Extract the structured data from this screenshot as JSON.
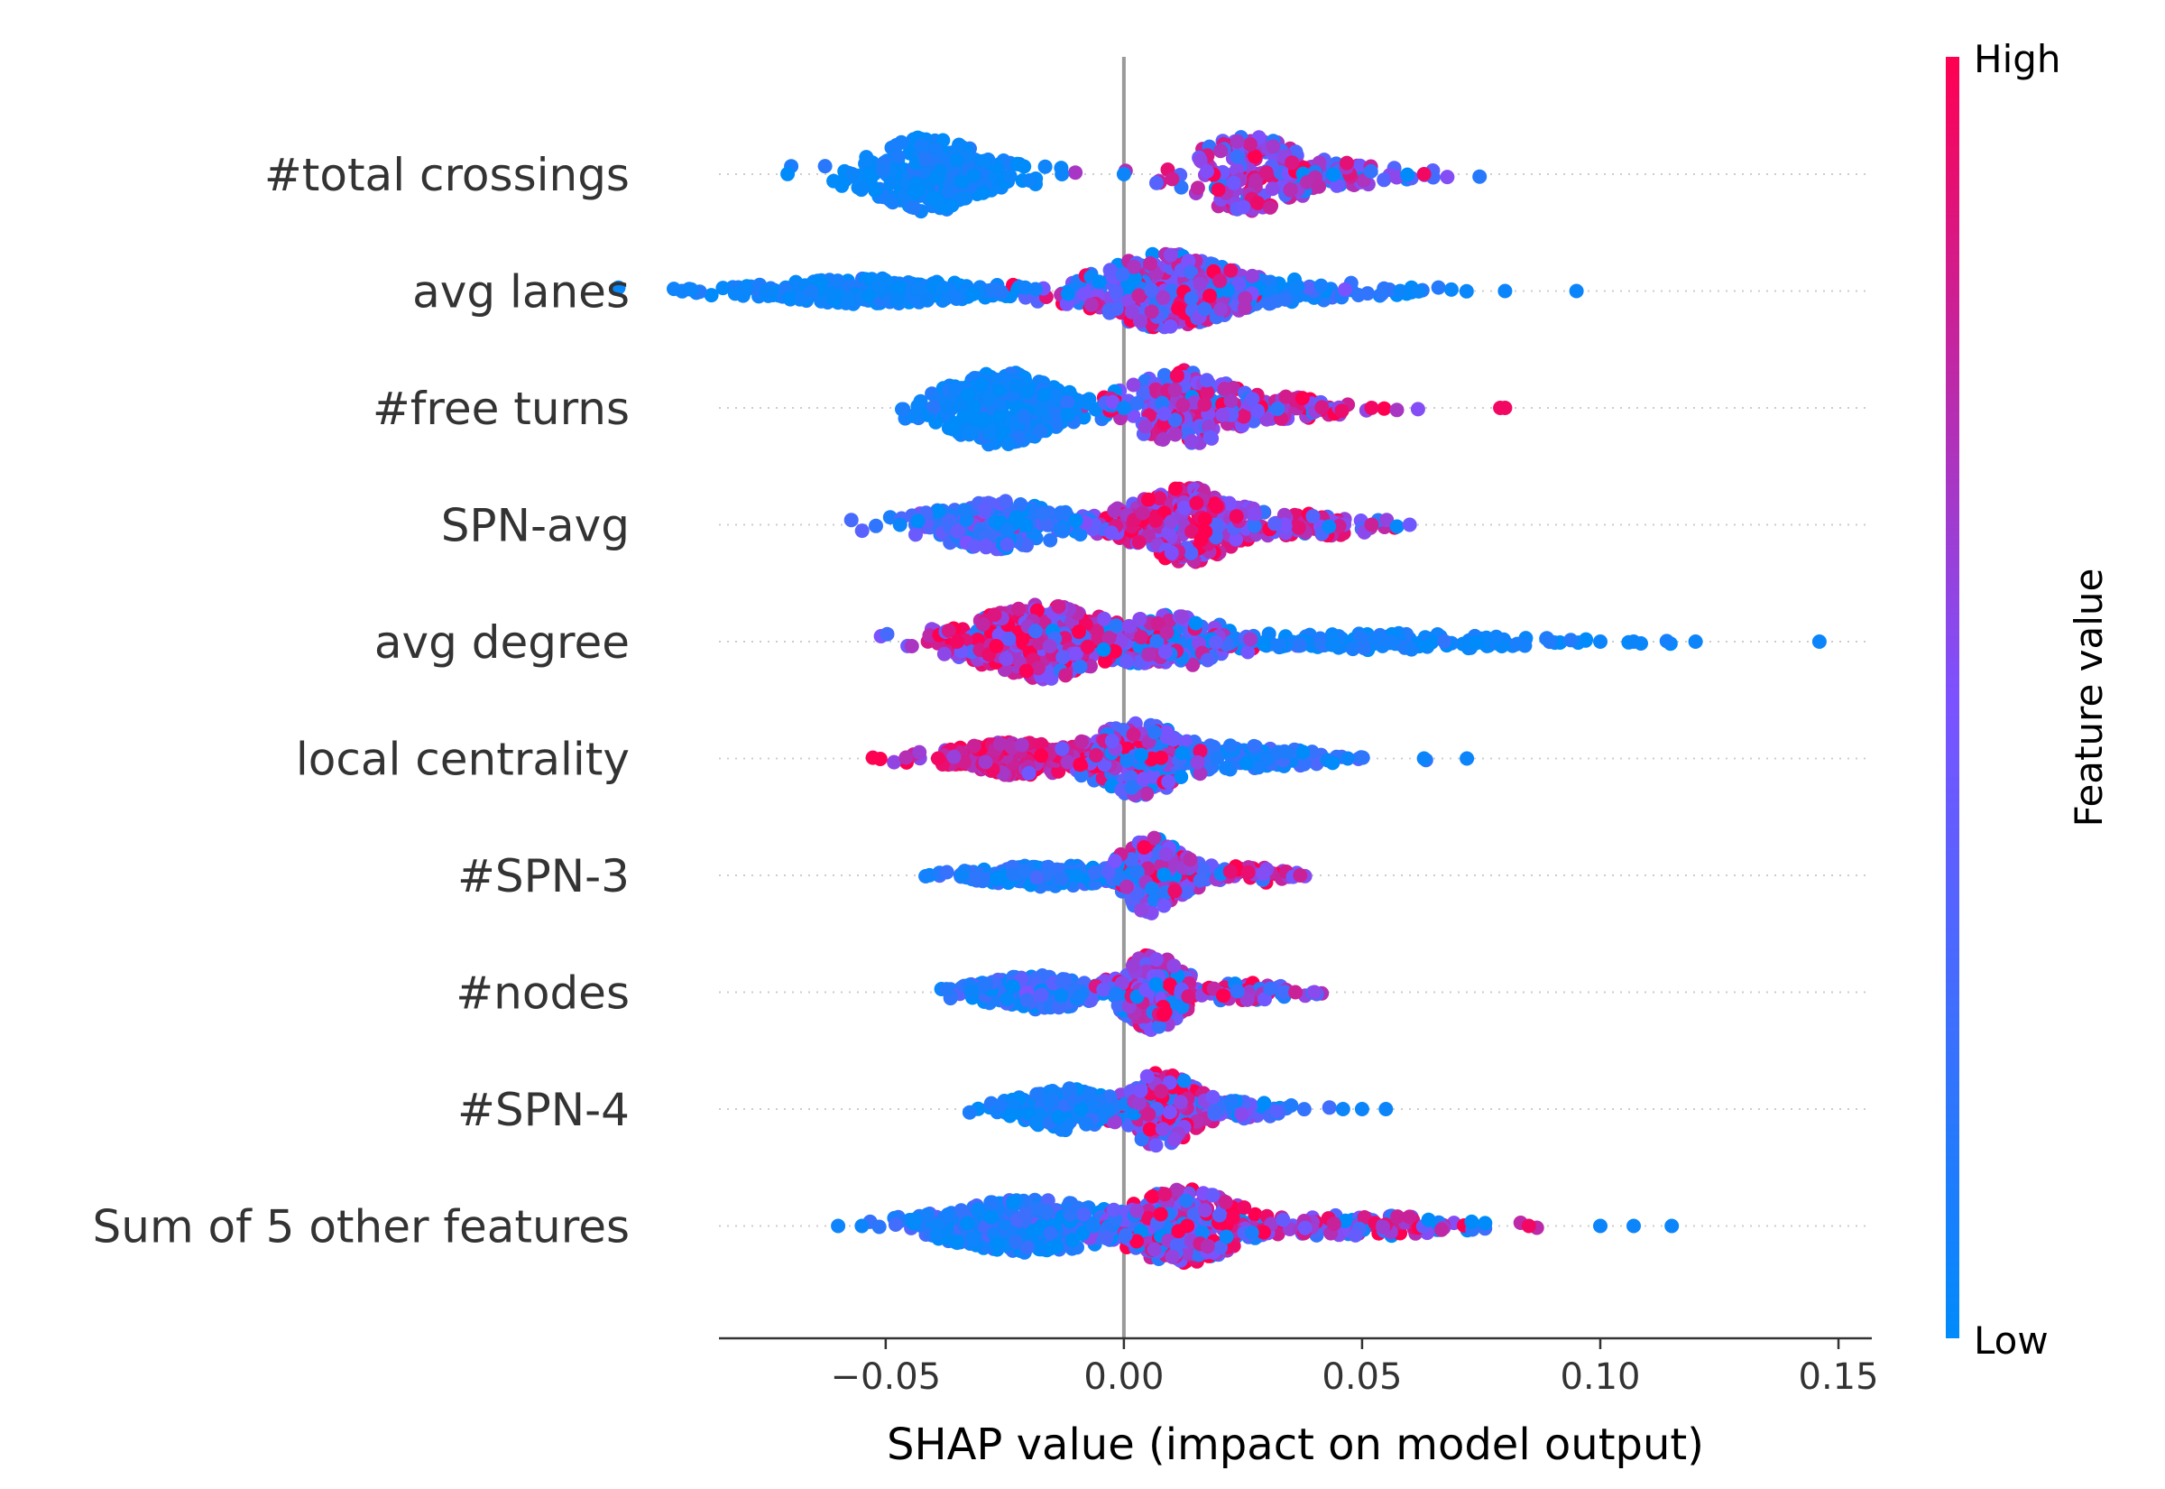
{
  "chart_data": {
    "type": "scatter",
    "subtype": "shap-beeswarm",
    "xlabel": "SHAP value (impact on model output)",
    "xlim": [
      -0.085,
      0.157
    ],
    "xticks": [
      {
        "value": -0.05,
        "label": "−0.05"
      },
      {
        "value": 0.0,
        "label": "0.00"
      },
      {
        "value": 0.05,
        "label": "0.05"
      },
      {
        "value": 0.1,
        "label": "0.10"
      },
      {
        "value": 0.15,
        "label": "0.15"
      }
    ],
    "grid": false,
    "zero_line": 0.0,
    "colorbar": {
      "title": "Feature value",
      "high_label": "High",
      "low_label": "Low",
      "low_color": "#008bfb",
      "mid_color": "#7c52ff",
      "high_color": "#ff0051"
    },
    "features": [
      {
        "name": "#total crossings",
        "clusters": [
          {
            "center": -0.041,
            "spread": 0.0085,
            "count": 300,
            "color_mean": 0.05,
            "color_sd": 0.05,
            "height": 1.0
          },
          {
            "center": 0.026,
            "spread": 0.009,
            "count": 200,
            "color_mean": 0.6,
            "color_sd": 0.25,
            "height": 1.0
          },
          {
            "center": 0.047,
            "spread": 0.01,
            "count": 60,
            "color_mean": 0.45,
            "color_sd": 0.35,
            "height": 0.3
          }
        ],
        "outliers": [
          {
            "x": -0.013,
            "c": 0.05
          },
          {
            "x": -0.057,
            "c": 0.05
          },
          {
            "x": 0.063,
            "c": 0.95
          },
          {
            "x": 0.0,
            "c": 0.05
          }
        ]
      },
      {
        "name": "avg lanes",
        "clusters": [
          {
            "center": -0.052,
            "spread": 0.016,
            "count": 260,
            "color_mean": 0.05,
            "color_sd": 0.05,
            "height": 0.35
          },
          {
            "center": 0.009,
            "spread": 0.0105,
            "count": 330,
            "color_mean": 0.5,
            "color_sd": 0.3,
            "height": 1.0
          },
          {
            "center": 0.035,
            "spread": 0.015,
            "count": 80,
            "color_mean": 0.1,
            "color_sd": 0.08,
            "height": 0.3
          }
        ],
        "outliers": [
          {
            "x": -0.075,
            "c": 0.05
          },
          {
            "x": 0.058,
            "c": 0.05
          },
          {
            "x": 0.08,
            "c": 0.05
          },
          {
            "x": 0.095,
            "c": 0.05
          }
        ]
      },
      {
        "name": "#free turns",
        "clusters": [
          {
            "center": -0.026,
            "spread": 0.0085,
            "count": 300,
            "color_mean": 0.05,
            "color_sd": 0.05,
            "height": 1.0
          },
          {
            "center": 0.012,
            "spread": 0.0085,
            "count": 220,
            "color_mean": 0.55,
            "color_sd": 0.3,
            "height": 1.0
          },
          {
            "center": 0.035,
            "spread": 0.009,
            "count": 60,
            "color_mean": 0.75,
            "color_sd": 0.25,
            "height": 0.3
          }
        ],
        "outliers": [
          {
            "x": 0.0,
            "c": 0.05
          },
          {
            "x": -0.037,
            "c": 0.05
          },
          {
            "x": 0.052,
            "c": 0.95
          },
          {
            "x": 0.079,
            "c": 0.95
          },
          {
            "x": 0.08,
            "c": 0.95
          }
        ]
      },
      {
        "name": "SPN-avg",
        "clusters": [
          {
            "center": -0.027,
            "spread": 0.01,
            "count": 200,
            "color_mean": 0.2,
            "color_sd": 0.18,
            "height": 0.65
          },
          {
            "center": 0.013,
            "spread": 0.0085,
            "count": 300,
            "color_mean": 0.75,
            "color_sd": 0.25,
            "height": 1.0
          },
          {
            "center": 0.04,
            "spread": 0.01,
            "count": 60,
            "color_mean": 0.55,
            "color_sd": 0.3,
            "height": 0.3
          }
        ],
        "outliers": [
          {
            "x": -0.047,
            "c": 0.05
          },
          {
            "x": 0.06,
            "c": 0.45
          },
          {
            "x": 0.052,
            "c": 0.8
          }
        ]
      },
      {
        "name": "avg degree",
        "clusters": [
          {
            "center": -0.017,
            "spread": 0.011,
            "count": 330,
            "color_mean": 0.72,
            "color_sd": 0.25,
            "height": 1.0
          },
          {
            "center": 0.008,
            "spread": 0.011,
            "count": 180,
            "color_mean": 0.4,
            "color_sd": 0.3,
            "height": 0.7
          },
          {
            "center": 0.055,
            "spread": 0.022,
            "count": 150,
            "color_mean": 0.06,
            "color_sd": 0.06,
            "height": 0.22
          }
        ],
        "outliers": [
          {
            "x": -0.035,
            "c": 0.95
          },
          {
            "x": 0.1,
            "c": 0.05
          },
          {
            "x": 0.107,
            "c": 0.05
          },
          {
            "x": 0.12,
            "c": 0.05
          },
          {
            "x": 0.146,
            "c": 0.05
          }
        ]
      },
      {
        "name": "local centrality",
        "clusters": [
          {
            "center": -0.022,
            "spread": 0.011,
            "count": 260,
            "color_mean": 0.85,
            "color_sd": 0.15,
            "height": 0.45
          },
          {
            "center": 0.003,
            "spread": 0.0075,
            "count": 200,
            "color_mean": 0.45,
            "color_sd": 0.3,
            "height": 1.0
          },
          {
            "center": 0.024,
            "spread": 0.011,
            "count": 120,
            "color_mean": 0.15,
            "color_sd": 0.12,
            "height": 0.35
          }
        ],
        "outliers": [
          {
            "x": -0.039,
            "c": 0.95
          },
          {
            "x": 0.047,
            "c": 0.05
          },
          {
            "x": 0.063,
            "c": 0.05
          },
          {
            "x": 0.072,
            "c": 0.05
          }
        ]
      },
      {
        "name": "#SPN-3",
        "clusters": [
          {
            "center": -0.016,
            "spread": 0.01,
            "count": 200,
            "color_mean": 0.12,
            "color_sd": 0.1,
            "height": 0.3
          },
          {
            "center": 0.006,
            "spread": 0.005,
            "count": 200,
            "color_mean": 0.55,
            "color_sd": 0.3,
            "height": 1.0
          },
          {
            "center": 0.025,
            "spread": 0.006,
            "count": 50,
            "color_mean": 0.6,
            "color_sd": 0.3,
            "height": 0.25
          }
        ],
        "outliers": [
          {
            "x": -0.034,
            "c": 0.05
          },
          {
            "x": 0.037,
            "c": 0.8
          }
        ]
      },
      {
        "name": "#nodes",
        "clusters": [
          {
            "center": -0.018,
            "spread": 0.0095,
            "count": 200,
            "color_mean": 0.15,
            "color_sd": 0.15,
            "height": 0.45
          },
          {
            "center": 0.006,
            "spread": 0.005,
            "count": 200,
            "color_mean": 0.6,
            "color_sd": 0.3,
            "height": 1.0
          },
          {
            "center": 0.025,
            "spread": 0.007,
            "count": 50,
            "color_mean": 0.6,
            "color_sd": 0.3,
            "height": 0.25
          }
        ],
        "outliers": [
          {
            "x": -0.032,
            "c": 0.05
          },
          {
            "x": 0.04,
            "c": 0.55
          },
          {
            "x": 0.036,
            "c": 0.8
          }
        ]
      },
      {
        "name": "#SPN-4",
        "clusters": [
          {
            "center": -0.012,
            "spread": 0.0075,
            "count": 200,
            "color_mean": 0.08,
            "color_sd": 0.07,
            "height": 0.55
          },
          {
            "center": 0.008,
            "spread": 0.0055,
            "count": 200,
            "color_mean": 0.65,
            "color_sd": 0.3,
            "height": 1.0
          },
          {
            "center": 0.026,
            "spread": 0.006,
            "count": 50,
            "color_mean": 0.2,
            "color_sd": 0.15,
            "height": 0.25
          }
        ],
        "outliers": [
          {
            "x": 0.046,
            "c": 0.05
          },
          {
            "x": 0.05,
            "c": 0.05
          },
          {
            "x": 0.055,
            "c": 0.05
          }
        ]
      },
      {
        "name": "Sum of 5 other features",
        "clusters": [
          {
            "center": -0.02,
            "spread": 0.014,
            "count": 360,
            "color_mean": 0.12,
            "color_sd": 0.12,
            "height": 0.7
          },
          {
            "center": 0.012,
            "spread": 0.009,
            "count": 280,
            "color_mean": 0.6,
            "color_sd": 0.3,
            "height": 1.0
          },
          {
            "center": 0.05,
            "spread": 0.013,
            "count": 120,
            "color_mean": 0.5,
            "color_sd": 0.35,
            "height": 0.3
          }
        ],
        "outliers": [
          {
            "x": -0.055,
            "c": 0.05
          },
          {
            "x": 0.085,
            "c": 0.95
          },
          {
            "x": 0.1,
            "c": 0.05
          },
          {
            "x": 0.107,
            "c": 0.05
          },
          {
            "x": 0.115,
            "c": 0.05
          }
        ]
      }
    ]
  }
}
